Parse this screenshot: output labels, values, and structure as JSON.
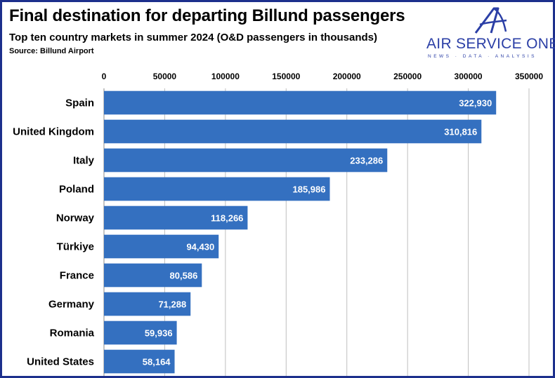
{
  "header": {
    "title": "Final destination for departing Billund passengers",
    "subtitle": "Top ten country markets in summer 2024 (O&D passengers in thousands)",
    "source": "Source: Billund Airport"
  },
  "logo": {
    "name": "AIR SERVICE ONE",
    "tagline": "NEWS · DATA · ANALYSIS",
    "icon": "stylized-a-icon",
    "color": "#2b3fa6"
  },
  "colors": {
    "bar": "#3470c0",
    "frame": "#1c2f8c",
    "grid": "#bfbfbf"
  },
  "chart_data": {
    "type": "bar",
    "orientation": "horizontal",
    "title": "Final destination for departing Billund passengers",
    "subtitle": "Top ten country markets in summer 2024 (O&D passengers in thousands)",
    "categories": [
      "Spain",
      "United Kingdom",
      "Italy",
      "Poland",
      "Norway",
      "Türkiye",
      "France",
      "Germany",
      "Romania",
      "United States"
    ],
    "values": [
      322930,
      310816,
      233286,
      185986,
      118266,
      94430,
      80586,
      71288,
      59936,
      58164
    ],
    "value_labels": [
      "322,930",
      "310,816",
      "233,286",
      "185,986",
      "118,266",
      "94,430",
      "80,586",
      "71,288",
      "59,936",
      "58,164"
    ],
    "xlim": [
      0,
      350000
    ],
    "x_ticks": [
      0,
      50000,
      100000,
      150000,
      200000,
      250000,
      300000,
      350000
    ],
    "x_tick_labels": [
      "0",
      "50000",
      "100000",
      "150000",
      "200000",
      "250000",
      "300000",
      "350000"
    ],
    "x_axis_position": "top",
    "grid": true,
    "legend": "none"
  }
}
